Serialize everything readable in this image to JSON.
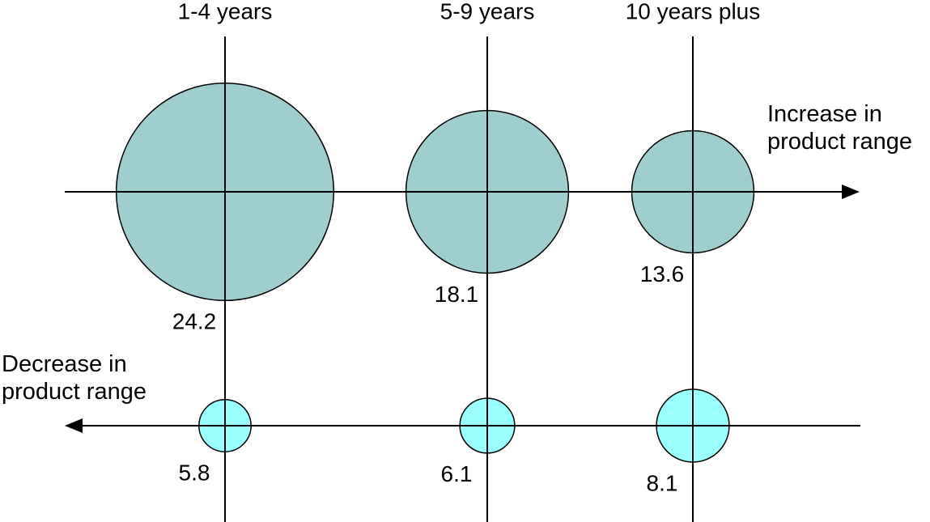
{
  "chart_data": {
    "type": "bubble",
    "categories": [
      "1-4 years",
      "5-9 years",
      "10 years plus"
    ],
    "series": [
      {
        "name": "Increase in product range",
        "color": "#9ecece",
        "values": [
          24.2,
          18.1,
          13.6
        ]
      },
      {
        "name": "Decrease in product range",
        "color": "#99ffff",
        "values": [
          5.8,
          6.1,
          8.1
        ]
      }
    ]
  }
}
